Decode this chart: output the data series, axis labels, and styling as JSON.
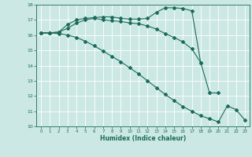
{
  "xlabel": "Humidex (Indice chaleur)",
  "bg_color": "#cce8e4",
  "line_color": "#1a6b5a",
  "grid_color": "#ffffff",
  "xlim": [
    -0.5,
    23.5
  ],
  "ylim": [
    10,
    18
  ],
  "xticks": [
    0,
    1,
    2,
    3,
    4,
    5,
    6,
    7,
    8,
    9,
    10,
    11,
    12,
    13,
    14,
    15,
    16,
    17,
    18,
    19,
    20,
    21,
    22,
    23
  ],
  "yticks": [
    10,
    11,
    12,
    13,
    14,
    15,
    16,
    17,
    18
  ],
  "line1_x": [
    0,
    1,
    2,
    3,
    4,
    5,
    6,
    7,
    8,
    9,
    10,
    11,
    12,
    13,
    14,
    15,
    16,
    17,
    18
  ],
  "line1_y": [
    16.15,
    16.15,
    16.2,
    16.7,
    17.0,
    17.1,
    17.15,
    17.2,
    17.2,
    17.1,
    17.05,
    17.05,
    17.1,
    17.5,
    17.8,
    17.8,
    17.75,
    17.6,
    14.2
  ],
  "line2_x": [
    0,
    1,
    2,
    3,
    4,
    5,
    6,
    7,
    8,
    9,
    10,
    11,
    12,
    13,
    14,
    15,
    16,
    17,
    18,
    19,
    20
  ],
  "line2_y": [
    16.15,
    16.15,
    16.2,
    16.45,
    16.8,
    17.0,
    17.1,
    17.0,
    16.95,
    16.9,
    16.8,
    16.75,
    16.6,
    16.4,
    16.1,
    15.85,
    15.55,
    15.1,
    14.2,
    12.2,
    12.2
  ],
  "line3_x": [
    0,
    1,
    2,
    3,
    4,
    5,
    6,
    7,
    8,
    9,
    10,
    11,
    12,
    13,
    14,
    15,
    16,
    17,
    18,
    19,
    20,
    21,
    22,
    23
  ],
  "line3_y": [
    16.15,
    16.15,
    16.1,
    16.0,
    15.85,
    15.6,
    15.3,
    14.95,
    14.6,
    14.25,
    13.85,
    13.45,
    13.0,
    12.55,
    12.1,
    11.7,
    11.3,
    11.0,
    10.7,
    10.5,
    10.3,
    11.35,
    11.1,
    10.4
  ]
}
